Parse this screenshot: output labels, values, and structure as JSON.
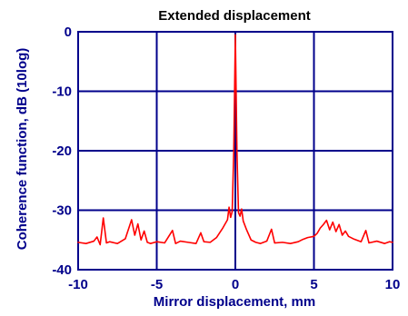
{
  "chart_data": {
    "type": "line",
    "title": "Extended displacement",
    "xlabel": "Mirror displacement, mm",
    "ylabel": "Coherence function, dB (10log)",
    "xlim": [
      -10,
      10
    ],
    "ylim": [
      -40,
      0
    ],
    "xticks": [
      -10,
      -5,
      0,
      5,
      10
    ],
    "yticks": [
      0,
      -10,
      -20,
      -30,
      -40
    ],
    "grid": true,
    "colors": {
      "series": "#ff0000",
      "axis": "#00008b",
      "text": "#00008b",
      "title": "#000000"
    },
    "series": [
      {
        "points": [
          [
            -10.0,
            -35.4
          ],
          [
            -9.5,
            -35.6
          ],
          [
            -9.0,
            -35.2
          ],
          [
            -8.8,
            -34.5
          ],
          [
            -8.6,
            -35.8
          ],
          [
            -8.4,
            -31.3
          ],
          [
            -8.2,
            -35.5
          ],
          [
            -8.0,
            -35.3
          ],
          [
            -7.5,
            -35.6
          ],
          [
            -7.0,
            -34.8
          ],
          [
            -6.8,
            -33.2
          ],
          [
            -6.6,
            -31.6
          ],
          [
            -6.4,
            -34.2
          ],
          [
            -6.2,
            -32.3
          ],
          [
            -6.0,
            -35.0
          ],
          [
            -5.8,
            -33.5
          ],
          [
            -5.6,
            -35.4
          ],
          [
            -5.4,
            -35.6
          ],
          [
            -5.0,
            -35.3
          ],
          [
            -4.5,
            -35.5
          ],
          [
            -4.0,
            -33.4
          ],
          [
            -3.8,
            -35.6
          ],
          [
            -3.5,
            -35.2
          ],
          [
            -3.0,
            -35.4
          ],
          [
            -2.5,
            -35.6
          ],
          [
            -2.2,
            -33.8
          ],
          [
            -2.0,
            -35.3
          ],
          [
            -1.6,
            -35.4
          ],
          [
            -1.2,
            -34.6
          ],
          [
            -0.8,
            -33.0
          ],
          [
            -0.5,
            -31.6
          ],
          [
            -0.4,
            -29.5
          ],
          [
            -0.3,
            -31.2
          ],
          [
            -0.2,
            -30.2
          ],
          [
            -0.1,
            -20.0
          ],
          [
            0.0,
            -0.5
          ],
          [
            0.1,
            -20.0
          ],
          [
            0.2,
            -30.4
          ],
          [
            0.3,
            -31.0
          ],
          [
            0.4,
            -29.8
          ],
          [
            0.5,
            -31.8
          ],
          [
            0.7,
            -33.2
          ],
          [
            1.0,
            -35.0
          ],
          [
            1.3,
            -35.4
          ],
          [
            1.6,
            -35.6
          ],
          [
            2.0,
            -35.2
          ],
          [
            2.3,
            -33.2
          ],
          [
            2.5,
            -35.5
          ],
          [
            3.0,
            -35.4
          ],
          [
            3.5,
            -35.6
          ],
          [
            4.0,
            -35.3
          ],
          [
            4.3,
            -34.9
          ],
          [
            4.6,
            -34.6
          ],
          [
            5.0,
            -34.4
          ],
          [
            5.2,
            -33.9
          ],
          [
            5.4,
            -33.0
          ],
          [
            5.6,
            -32.4
          ],
          [
            5.8,
            -31.7
          ],
          [
            6.0,
            -33.3
          ],
          [
            6.2,
            -32.0
          ],
          [
            6.4,
            -33.6
          ],
          [
            6.6,
            -32.4
          ],
          [
            6.8,
            -34.2
          ],
          [
            7.0,
            -33.5
          ],
          [
            7.2,
            -34.4
          ],
          [
            7.5,
            -34.8
          ],
          [
            8.0,
            -35.3
          ],
          [
            8.3,
            -33.4
          ],
          [
            8.5,
            -35.5
          ],
          [
            9.0,
            -35.2
          ],
          [
            9.5,
            -35.6
          ],
          [
            9.8,
            -35.3
          ],
          [
            10.0,
            -35.4
          ]
        ]
      }
    ]
  }
}
